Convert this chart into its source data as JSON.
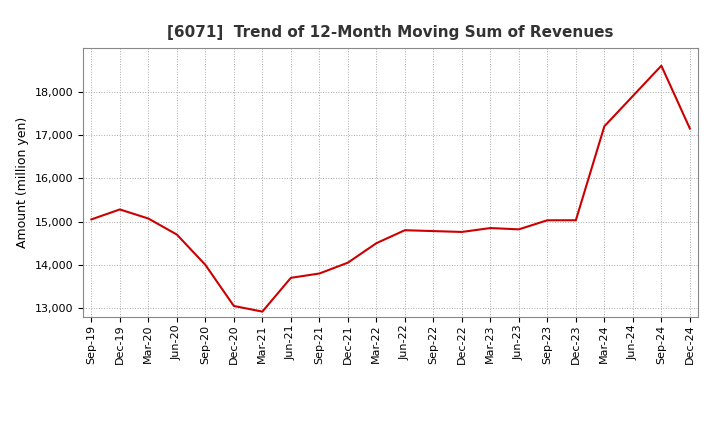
{
  "title": "[6071]  Trend of 12-Month Moving Sum of Revenues",
  "ylabel": "Amount (million yen)",
  "line_color": "#cc0000",
  "background_color": "#ffffff",
  "plot_bg_color": "#ffffff",
  "grid_color": "#aaaaaa",
  "x_labels": [
    "Sep-19",
    "Dec-19",
    "Mar-20",
    "Jun-20",
    "Sep-20",
    "Dec-20",
    "Mar-21",
    "Jun-21",
    "Sep-21",
    "Dec-21",
    "Mar-22",
    "Jun-22",
    "Sep-22",
    "Dec-22",
    "Mar-23",
    "Jun-23",
    "Sep-23",
    "Dec-23",
    "Mar-24",
    "Jun-24",
    "Sep-24",
    "Dec-24"
  ],
  "y_values": [
    15050,
    15280,
    15070,
    14700,
    14000,
    13050,
    12920,
    13700,
    13800,
    14050,
    14500,
    14800,
    14780,
    14760,
    14850,
    14820,
    15030,
    15030,
    17200,
    17900,
    18600,
    17150
  ],
  "ylim": [
    12800,
    19000
  ],
  "yticks": [
    13000,
    14000,
    15000,
    16000,
    17000,
    18000
  ],
  "title_fontsize": 11,
  "axis_fontsize": 9,
  "tick_fontsize": 8
}
